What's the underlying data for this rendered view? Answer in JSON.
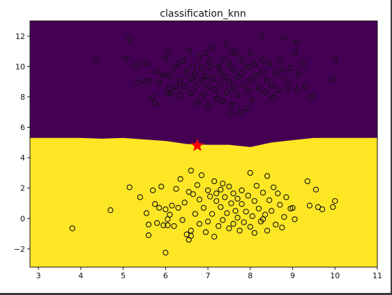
{
  "chart_data": {
    "type": "scatter",
    "title": "classification_knn",
    "xlabel": "",
    "ylabel": "",
    "xlim": [
      2.8,
      11.0
    ],
    "ylim": [
      -3.2,
      13.0
    ],
    "xticks": [
      3,
      4,
      5,
      6,
      7,
      8,
      9,
      10,
      11
    ],
    "yticks": [
      -2,
      0,
      2,
      4,
      6,
      8,
      10,
      12
    ],
    "grid": false,
    "legend": "none",
    "colors": {
      "class_upper": "#440154",
      "class_lower": "#fde725",
      "marker_edge": "#111111",
      "query_star": "#ff0000"
    },
    "decision_boundary": {
      "x": [
        2.8,
        3.5,
        4.0,
        4.5,
        5.0,
        5.5,
        6.0,
        6.5,
        7.0,
        7.5,
        8.0,
        8.5,
        9.0,
        9.5,
        10.0,
        11.0
      ],
      "y": [
        5.3,
        5.3,
        5.3,
        5.25,
        5.3,
        5.2,
        5.1,
        4.9,
        4.85,
        4.85,
        4.7,
        5.0,
        5.15,
        5.3,
        5.3,
        5.3
      ]
    },
    "query_point": {
      "x": 6.75,
      "y": 4.8
    },
    "series": [
      {
        "class": "upper",
        "points": [
          [
            4.35,
            10.5
          ],
          [
            5.05,
            10.5
          ],
          [
            5.15,
            11.8
          ],
          [
            5.3,
            10.1
          ],
          [
            5.35,
            8.95
          ],
          [
            5.5,
            9.0
          ],
          [
            5.55,
            10.25
          ],
          [
            5.6,
            9.05
          ],
          [
            5.7,
            7.95
          ],
          [
            5.75,
            7.6
          ],
          [
            5.8,
            9.7
          ],
          [
            5.85,
            8.95
          ],
          [
            5.95,
            9.45
          ],
          [
            6.0,
            10.5
          ],
          [
            6.05,
            11.0
          ],
          [
            6.1,
            9.35
          ],
          [
            6.1,
            8.55
          ],
          [
            6.15,
            8.2
          ],
          [
            6.2,
            9.9
          ],
          [
            6.25,
            8.65
          ],
          [
            6.3,
            10.2
          ],
          [
            6.35,
            9.0
          ],
          [
            6.35,
            8.1
          ],
          [
            6.4,
            10.4
          ],
          [
            6.45,
            8.7
          ],
          [
            6.5,
            9.6
          ],
          [
            6.55,
            11.05
          ],
          [
            6.6,
            9.2
          ],
          [
            6.6,
            8.25
          ],
          [
            6.65,
            10.0
          ],
          [
            6.7,
            9.5
          ],
          [
            6.7,
            8.7
          ],
          [
            6.75,
            7.65
          ],
          [
            6.8,
            10.6
          ],
          [
            6.85,
            9.9
          ],
          [
            6.85,
            9.1
          ],
          [
            6.9,
            8.2
          ],
          [
            6.95,
            10.9
          ],
          [
            6.95,
            9.35
          ],
          [
            7.0,
            8.7
          ],
          [
            7.0,
            7.4
          ],
          [
            7.05,
            10.4
          ],
          [
            7.05,
            9.95
          ],
          [
            7.1,
            9.2
          ],
          [
            7.1,
            11.3
          ],
          [
            7.15,
            8.5
          ],
          [
            7.2,
            7.9
          ],
          [
            7.25,
            10.0
          ],
          [
            7.3,
            9.6
          ],
          [
            7.3,
            8.85
          ],
          [
            7.35,
            10.55
          ],
          [
            7.35,
            7.75
          ],
          [
            7.4,
            9.3
          ],
          [
            7.45,
            11.5
          ],
          [
            7.45,
            8.3
          ],
          [
            7.5,
            10.2
          ],
          [
            7.5,
            9.0
          ],
          [
            7.55,
            11.0
          ],
          [
            7.55,
            7.5
          ],
          [
            7.6,
            9.8
          ],
          [
            7.6,
            8.6
          ],
          [
            7.65,
            10.9
          ],
          [
            7.7,
            9.3
          ],
          [
            7.7,
            8.15
          ],
          [
            7.75,
            7.0
          ],
          [
            7.8,
            10.4
          ],
          [
            7.8,
            9.55
          ],
          [
            7.85,
            8.8
          ],
          [
            7.9,
            7.25
          ],
          [
            7.95,
            9.95
          ],
          [
            7.95,
            8.4
          ],
          [
            8.0,
            10.9
          ],
          [
            8.0,
            9.1
          ],
          [
            8.05,
            7.8
          ],
          [
            8.1,
            10.1
          ],
          [
            8.15,
            9.4
          ],
          [
            8.2,
            8.6
          ],
          [
            8.25,
            12.0
          ],
          [
            8.3,
            10.45
          ],
          [
            8.3,
            9.7
          ],
          [
            8.35,
            8.3
          ],
          [
            8.4,
            9.1
          ],
          [
            8.45,
            10.2
          ],
          [
            8.5,
            8.75
          ],
          [
            8.55,
            7.95
          ],
          [
            8.6,
            9.5
          ],
          [
            8.65,
            8.45
          ],
          [
            8.7,
            10.4
          ],
          [
            8.75,
            9.8
          ],
          [
            8.8,
            11.9
          ],
          [
            8.85,
            9.15
          ],
          [
            8.9,
            8.6
          ],
          [
            8.95,
            9.9
          ],
          [
            9.05,
            10.9
          ],
          [
            9.1,
            8.45
          ],
          [
            9.15,
            9.5
          ],
          [
            9.25,
            10.15
          ],
          [
            9.3,
            8.7
          ],
          [
            9.45,
            8.05
          ],
          [
            9.95,
            9.2
          ],
          [
            10.0,
            10.5
          ],
          [
            9.1,
            11.6
          ],
          [
            7.55,
            6.95
          ],
          [
            6.05,
            8.25
          ]
        ]
      },
      {
        "class": "lower",
        "points": [
          [
            3.8,
            -0.65
          ],
          [
            4.7,
            0.55
          ],
          [
            5.15,
            2.05
          ],
          [
            5.4,
            1.4
          ],
          [
            5.55,
            0.35
          ],
          [
            5.6,
            -0.4
          ],
          [
            5.6,
            -1.1
          ],
          [
            5.7,
            1.85
          ],
          [
            5.75,
            0.95
          ],
          [
            5.8,
            -0.3
          ],
          [
            5.85,
            0.7
          ],
          [
            5.9,
            2.1
          ],
          [
            5.95,
            -0.45
          ],
          [
            6.0,
            -2.25
          ],
          [
            6.0,
            0.6
          ],
          [
            6.05,
            -0.45
          ],
          [
            6.1,
            0.25
          ],
          [
            6.15,
            0.85
          ],
          [
            6.2,
            -0.5
          ],
          [
            6.25,
            1.95
          ],
          [
            6.3,
            0.7
          ],
          [
            6.35,
            2.6
          ],
          [
            6.4,
            -0.1
          ],
          [
            6.45,
            1.05
          ],
          [
            6.5,
            -1.05
          ],
          [
            6.55,
            -1.4
          ],
          [
            6.6,
            -0.8
          ],
          [
            6.6,
            3.15
          ],
          [
            6.65,
            1.6
          ],
          [
            6.7,
            0.3
          ],
          [
            6.75,
            2.2
          ],
          [
            6.8,
            1.25
          ],
          [
            6.8,
            -0.35
          ],
          [
            6.85,
            2.85
          ],
          [
            6.9,
            0.7
          ],
          [
            6.95,
            -0.9
          ],
          [
            7.0,
            1.85
          ],
          [
            7.0,
            -0.2
          ],
          [
            7.05,
            1.45
          ],
          [
            7.1,
            0.3
          ],
          [
            7.15,
            -1.2
          ],
          [
            7.15,
            2.45
          ],
          [
            7.2,
            1.15
          ],
          [
            7.25,
            -0.5
          ],
          [
            7.3,
            0.75
          ],
          [
            7.3,
            1.9
          ],
          [
            7.35,
            -0.1
          ],
          [
            7.4,
            1.4
          ],
          [
            7.45,
            0.35
          ],
          [
            7.5,
            -0.65
          ],
          [
            7.5,
            2.1
          ],
          [
            7.55,
            1.0
          ],
          [
            7.6,
            -0.35
          ],
          [
            7.6,
            1.65
          ],
          [
            7.65,
            0.5
          ],
          [
            7.7,
            0.05
          ],
          [
            7.7,
            1.3
          ],
          [
            7.75,
            -0.8
          ],
          [
            7.8,
            0.95
          ],
          [
            7.8,
            1.85
          ],
          [
            7.85,
            -0.25
          ],
          [
            7.9,
            0.45
          ],
          [
            7.95,
            1.5
          ],
          [
            8.0,
            -0.55
          ],
          [
            8.0,
            3.0
          ],
          [
            8.05,
            0.15
          ],
          [
            8.1,
            1.15
          ],
          [
            8.1,
            -0.95
          ],
          [
            8.15,
            2.15
          ],
          [
            8.2,
            0.65
          ],
          [
            8.25,
            -0.2
          ],
          [
            8.3,
            1.7
          ],
          [
            8.35,
            0.25
          ],
          [
            8.4,
            -0.8
          ],
          [
            8.4,
            2.8
          ],
          [
            8.45,
            1.2
          ],
          [
            8.5,
            0.5
          ],
          [
            8.55,
            2.05
          ],
          [
            8.6,
            -0.4
          ],
          [
            8.65,
            1.65
          ],
          [
            8.7,
            0.9
          ],
          [
            8.75,
            -0.6
          ],
          [
            8.8,
            0.1
          ],
          [
            8.85,
            1.4
          ],
          [
            9.0,
            0.7
          ],
          [
            9.05,
            -0.05
          ],
          [
            9.35,
            2.45
          ],
          [
            9.4,
            0.85
          ],
          [
            9.55,
            1.9
          ],
          [
            9.6,
            0.75
          ],
          [
            9.7,
            0.6
          ],
          [
            9.95,
            0.75
          ],
          [
            10.0,
            1.15
          ],
          [
            7.35,
            2.3
          ],
          [
            6.55,
            1.75
          ],
          [
            8.95,
            0.65
          ],
          [
            6.05,
            -0.05
          ],
          [
            7.2,
            1.65
          ],
          [
            6.6,
            -1.15
          ],
          [
            8.3,
            -0.05
          ]
        ]
      }
    ]
  }
}
